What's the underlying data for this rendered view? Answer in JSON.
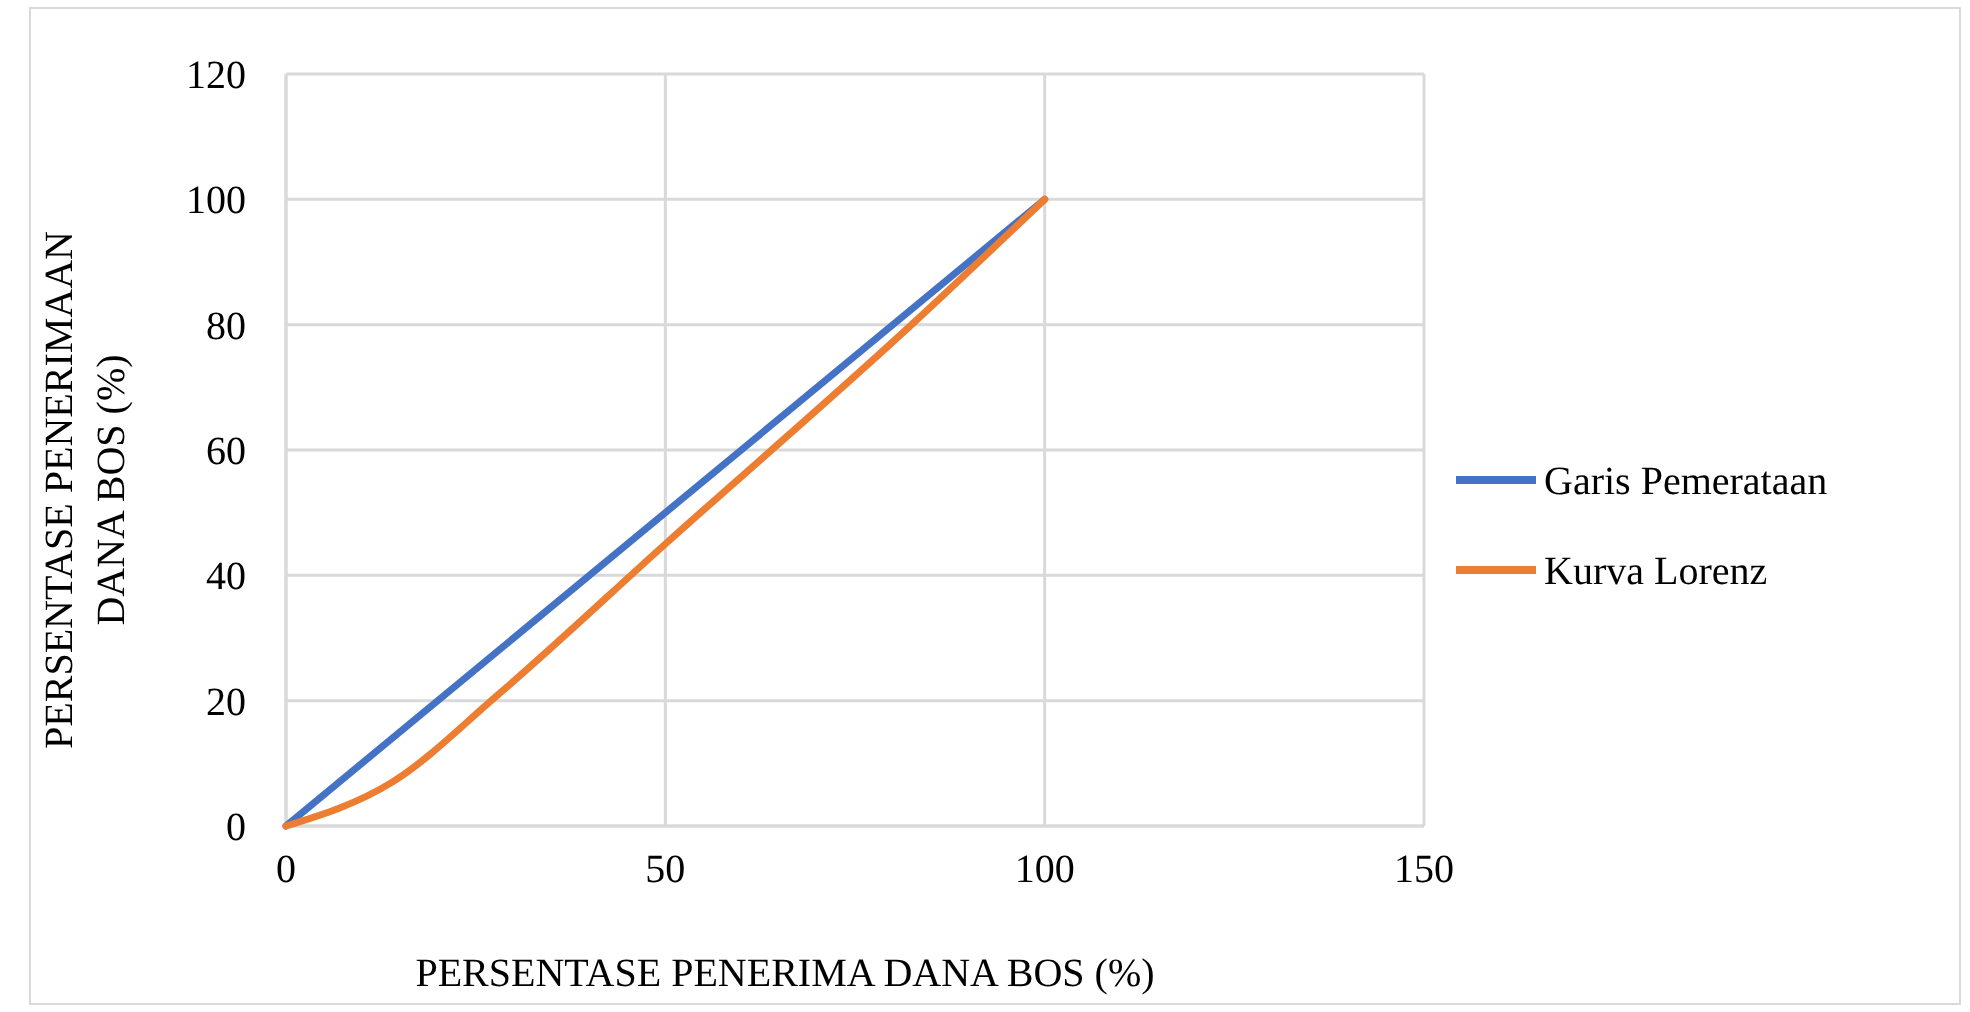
{
  "chart_data": {
    "type": "line",
    "xlabel": "PERSENTASE PENERIMA DANA BOS (%)",
    "ylabel": "PERSENTASE PENERIMAAN DANA BOS (%)",
    "xlim": [
      0,
      150
    ],
    "xticks": [
      0,
      50,
      100,
      150
    ],
    "ylim": [
      0,
      120
    ],
    "yticks": [
      0,
      20,
      40,
      60,
      80,
      100,
      120
    ],
    "grid": true,
    "legend": "right",
    "marker": "none",
    "line_style": "solid",
    "series": [
      {
        "name": "Garis Pemerataan",
        "color": "#4472c4",
        "x": [
          0,
          100
        ],
        "values": [
          0,
          100
        ]
      },
      {
        "name": "Kurva Lorenz",
        "color": "#ed7d31",
        "x": [
          0,
          14,
          28,
          50,
          83,
          100
        ],
        "values": [
          0,
          7,
          21,
          45,
          80.6,
          100
        ]
      }
    ]
  }
}
